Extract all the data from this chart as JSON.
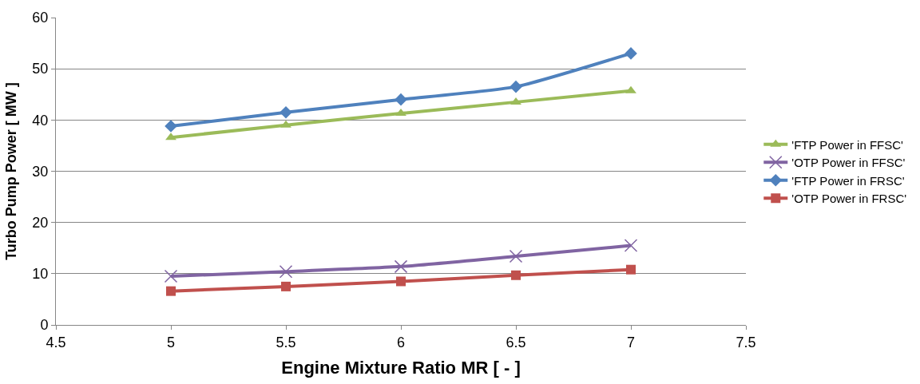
{
  "chart_data": {
    "type": "line",
    "xlabel": "Engine Mixture Ratio MR [ - ]",
    "ylabel": "Turbo Pump Power [ MW ]",
    "x": [
      5,
      5.5,
      6,
      6.5,
      7
    ],
    "series": [
      {
        "name": "'FTP Power in FFSC'",
        "color": "#9bbb59",
        "marker": "triangle",
        "values": [
          36.6,
          39.0,
          41.3,
          43.5,
          45.7
        ]
      },
      {
        "name": "'OTP Power in FFSC'",
        "color": "#8064a2",
        "marker": "cross",
        "values": [
          9.5,
          10.4,
          11.4,
          13.4,
          15.5
        ]
      },
      {
        "name": "'FTP Power in FRSC'",
        "color": "#4f81bd",
        "marker": "diamond",
        "values": [
          38.8,
          41.5,
          44.0,
          46.5,
          53.0
        ]
      },
      {
        "name": "'OTP Power in FRSC'",
        "color": "#c0504d",
        "marker": "square",
        "values": [
          6.6,
          7.5,
          8.5,
          9.7,
          10.8
        ]
      }
    ],
    "xlim": [
      4.5,
      7.5
    ],
    "xticks": [
      4.5,
      5,
      5.5,
      6,
      6.5,
      7,
      7.5
    ],
    "ylim": [
      0,
      60
    ],
    "yticks": [
      0,
      10,
      20,
      30,
      40,
      50,
      60
    ],
    "grid": "y",
    "legend": "right",
    "line_style": "solid"
  }
}
